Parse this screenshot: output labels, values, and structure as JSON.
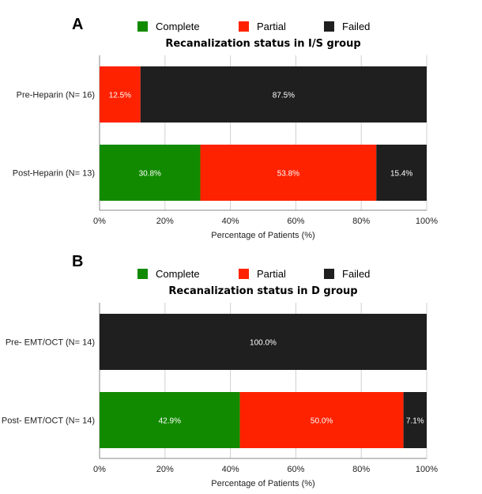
{
  "colors": {
    "complete": "#128a00",
    "partial": "#ff2200",
    "failed": "#1f1f1f",
    "grid": "#d0d0d0",
    "axis": "#888888"
  },
  "chart_data": [
    {
      "panel_label": "A",
      "type": "bar",
      "orientation": "horizontal",
      "stacked": true,
      "title": "Recanalization status in I/S group",
      "xlabel": "Percentage of Patients (%)",
      "xlim": [
        0,
        100
      ],
      "xticks": [
        "0%",
        "20%",
        "40%",
        "60%",
        "80%",
        "100%"
      ],
      "legend_position": "top",
      "categories": [
        "Pre-Heparin (N= 16)",
        "Post-Heparin (N= 13)"
      ],
      "series": [
        {
          "name": "Complete",
          "values": [
            0,
            30.8
          ],
          "labels": [
            "",
            "30.8%"
          ]
        },
        {
          "name": "Partial",
          "values": [
            12.5,
            53.8
          ],
          "labels": [
            "12.5%",
            "53.8%"
          ]
        },
        {
          "name": "Failed",
          "values": [
            87.5,
            15.4
          ],
          "labels": [
            "87.5%",
            "15.4%"
          ]
        }
      ]
    },
    {
      "panel_label": "B",
      "type": "bar",
      "orientation": "horizontal",
      "stacked": true,
      "title": "Recanalization status in D group",
      "xlabel": "Percentage of Patients (%)",
      "xlim": [
        0,
        100
      ],
      "xticks": [
        "0%",
        "20%",
        "40%",
        "60%",
        "80%",
        "100%"
      ],
      "legend_position": "top",
      "categories": [
        "Pre- EMT/OCT (N= 14)",
        "Post- EMT/OCT (N= 14)"
      ],
      "series": [
        {
          "name": "Complete",
          "values": [
            0,
            42.9
          ],
          "labels": [
            "",
            "42.9%"
          ]
        },
        {
          "name": "Partial",
          "values": [
            0,
            50.0
          ],
          "labels": [
            "",
            "50.0%"
          ]
        },
        {
          "name": "Failed",
          "values": [
            100.0,
            7.1
          ],
          "labels": [
            "100.0%",
            "7.1%"
          ]
        }
      ]
    }
  ]
}
